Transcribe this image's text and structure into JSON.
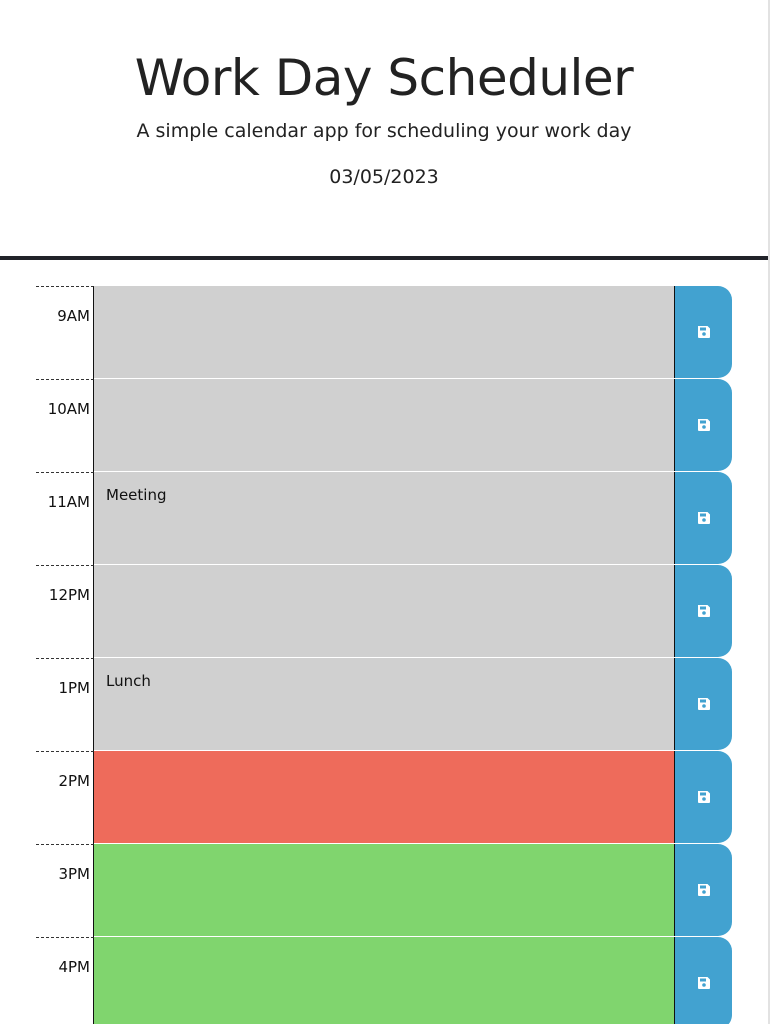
{
  "header": {
    "title": "Work Day Scheduler",
    "subtitle": "A simple calendar app for scheduling your work day",
    "date": "03/05/2023"
  },
  "colors": {
    "past": "#d0d0d0",
    "present": "#ee6b5b",
    "future": "#80d56e",
    "save": "#42a2d0",
    "header_rule": "#212329"
  },
  "rows": [
    {
      "hour": "9AM",
      "text": "",
      "state": "past",
      "save_icon": "floppy-disk-icon"
    },
    {
      "hour": "10AM",
      "text": "",
      "state": "past",
      "save_icon": "floppy-disk-icon"
    },
    {
      "hour": "11AM",
      "text": "Meeting",
      "state": "past",
      "save_icon": "floppy-disk-icon"
    },
    {
      "hour": "12PM",
      "text": "",
      "state": "past",
      "save_icon": "floppy-disk-icon"
    },
    {
      "hour": "1PM",
      "text": "Lunch",
      "state": "past",
      "save_icon": "floppy-disk-icon"
    },
    {
      "hour": "2PM",
      "text": "",
      "state": "present",
      "save_icon": "floppy-disk-icon"
    },
    {
      "hour": "3PM",
      "text": "",
      "state": "future",
      "save_icon": "floppy-disk-icon"
    },
    {
      "hour": "4PM",
      "text": "",
      "state": "future",
      "save_icon": "floppy-disk-icon"
    }
  ]
}
